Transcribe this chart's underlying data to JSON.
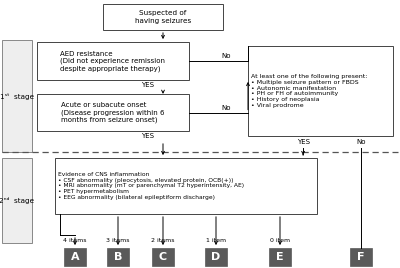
{
  "fig_width": 4.0,
  "fig_height": 2.68,
  "dpi": 100,
  "bg_color": "#ffffff",
  "dark_box_color": "#5a5a5a",
  "dark_box_text": "#ffffff",
  "stage_box_color": "#eeeeee",
  "stage1_label": "1ˢᵗ  stage",
  "stage2_label": "2ⁿᵈ  stage",
  "top_box_text": "Suspected of\nhaving seizures",
  "box1_text": "AED resistance\n(Did not experience remission\ndespite appropriate therapy)",
  "box2_text": "Acute or subacute onset\n(Disease progression within 6\nmonths from seizure onset)",
  "box3_text": "At least one of the following present:\n• Multiple seizure pattern or FBDS\n• Autonomic manifestation\n• PH or FH of autoimmunity\n• History of neoplasia\n• Viral prodrome",
  "box4_text": "Evidence of CNS inflammation\n• CSF abnormality (pleocytosis, elevated protein, OCB(+))\n• MRI abnormality (mT or parenchymal T2 hyperintensity, AE)\n• PET hypermetabolism\n• EEG abnormality (bilateral epileptiform discharge)",
  "grade_labels": [
    "A",
    "B",
    "C",
    "D",
    "E",
    "F"
  ],
  "item_labels": [
    "4 items",
    "3 items",
    "2 items",
    "1 item",
    "0 item",
    ""
  ]
}
